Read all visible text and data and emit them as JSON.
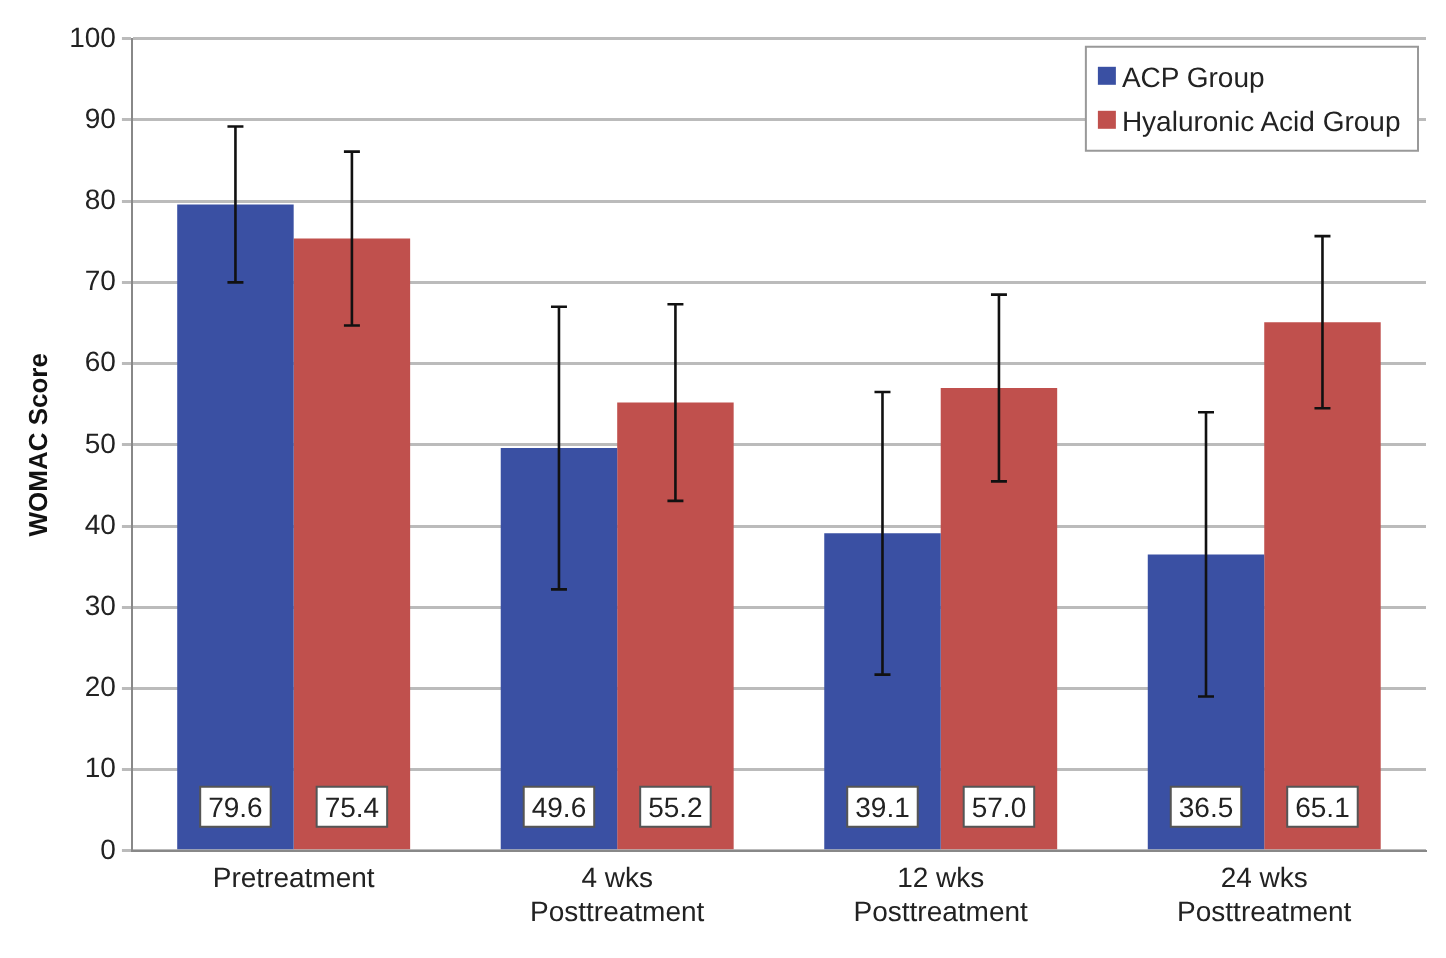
{
  "chart_data": {
    "type": "bar",
    "ylabel": "WOMAC Score",
    "categories": [
      "Pretreatment",
      "4 wks Posttreatment",
      "12 wks Posttreatment",
      "24 wks Posttreatment"
    ],
    "series": [
      {
        "name": "ACP Group",
        "color": "#3a50a3",
        "values": [
          79.6,
          49.6,
          39.1,
          36.5
        ],
        "value_labels": [
          "79.6",
          "49.6",
          "39.1",
          "36.5"
        ],
        "errors": [
          9.6,
          17.4,
          17.4,
          17.5
        ]
      },
      {
        "name": "Hyaluronic Acid Group",
        "color": "#c0504d",
        "values": [
          75.4,
          55.2,
          57.0,
          65.1
        ],
        "value_labels": [
          "75.4",
          "55.2",
          "57.0",
          "65.1"
        ],
        "errors": [
          10.7,
          12.1,
          11.5,
          10.6
        ]
      }
    ],
    "ylim": [
      0,
      100
    ],
    "yticks": [
      0,
      10,
      20,
      30,
      40,
      50,
      60,
      70,
      80,
      90,
      100
    ],
    "grid": "y",
    "legend": "top right"
  }
}
